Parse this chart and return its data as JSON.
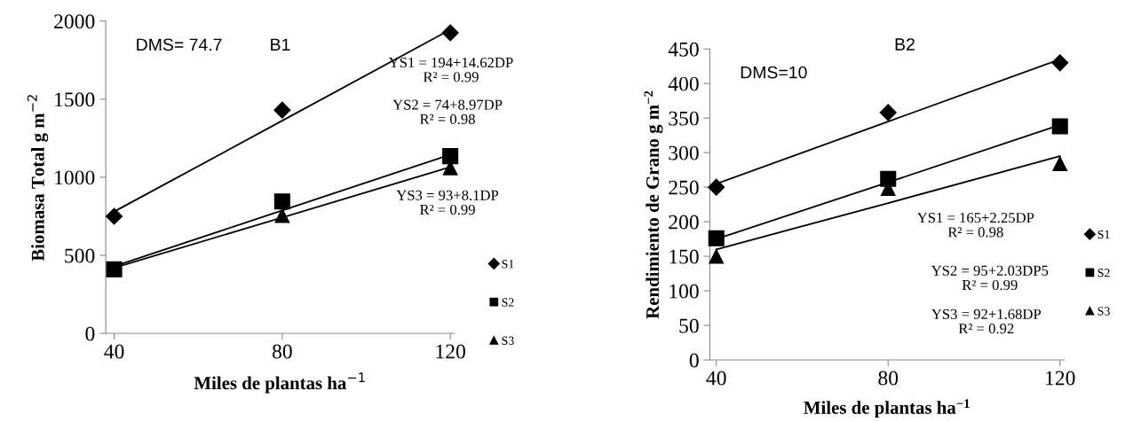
{
  "chart_data": [
    {
      "type": "scatter",
      "title": "B1",
      "xlabel": "Miles de plantas ha$^{−1}$",
      "ylabel": "Biomasa Total g m$^{−2}$",
      "x": [
        40,
        80,
        120
      ],
      "xlim": [
        38,
        121
      ],
      "xticks": [
        40,
        80,
        120
      ],
      "ylim": [
        0,
        2000
      ],
      "yticks": [
        0,
        500,
        1000,
        1500,
        2000
      ],
      "grid": false,
      "legend": "right",
      "annotations": [
        "DMS= 74.7",
        "YS1 = 194+14.62DP\nR² = 0.99",
        "YS2 = 74+8.97DP\nR² = 0.98",
        "YS3 = 93+8.1DP\nR² = 0.99"
      ],
      "series": [
        {
          "name": "S1",
          "color": "#000000",
          "marker": "diamond",
          "values": [
            750,
            1430,
            1925
          ]
        },
        {
          "name": "S2",
          "color": "#000000",
          "marker": "square",
          "values": [
            410,
            845,
            1135
          ]
        },
        {
          "name": "S3",
          "color": "#000000",
          "marker": "triangle",
          "values": [
            null,
            755,
            1060
          ]
        },
        {
          "type": "line",
          "color": "#000000",
          "values": [
            780,
            1362,
            1945
          ]
        },
        {
          "type": "line",
          "color": "#000000",
          "values": [
            430,
            787,
            1145
          ]
        },
        {
          "type": "line",
          "color": "#000000",
          "values": [
            420,
            742,
            1065
          ]
        }
      ]
    },
    {
      "type": "scatter",
      "title": "B2",
      "xlabel": "Miles de plantas ha$^{−1}$",
      "ylabel": "Rendimiento de Grano g m$^{−2}$",
      "x": [
        40,
        80,
        120
      ],
      "xlim": [
        38.5,
        121
      ],
      "xticks": [
        40,
        80,
        120
      ],
      "ylim": [
        0,
        450
      ],
      "yticks": [
        0,
        50,
        100,
        150,
        200,
        250,
        300,
        350,
        400,
        450
      ],
      "grid": false,
      "legend": "right",
      "annotations": [
        "DMS=10",
        "YS1 = 165+2.25DP\nR² = 0.98",
        "YS2 = 95+2.03DP5\nR² = 0.99",
        "YS3 = 92+1.68DP\nR² = 0.92"
      ],
      "series": [
        {
          "name": "S1",
          "color": "#000000",
          "marker": "diamond",
          "values": [
            250,
            358,
            430
          ]
        },
        {
          "name": "S2",
          "color": "#000000",
          "marker": "square",
          "values": [
            176,
            262,
            338
          ]
        },
        {
          "name": "S3",
          "color": "#000000",
          "marker": "triangle",
          "values": [
            150,
            248,
            284
          ]
        },
        {
          "type": "line",
          "color": "#000000",
          "values": [
            255,
            345,
            435
          ]
        },
        {
          "type": "line",
          "color": "#000000",
          "values": [
            175,
            257,
            340
          ]
        },
        {
          "type": "line",
          "color": "#000000",
          "values": [
            160,
            227,
            295
          ]
        }
      ]
    }
  ]
}
